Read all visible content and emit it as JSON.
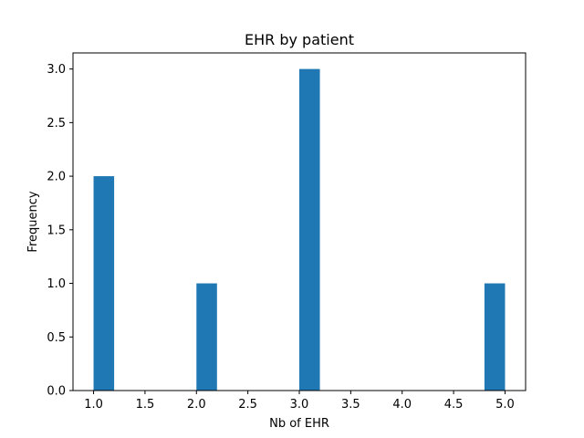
{
  "chart_data": {
    "type": "bar",
    "title": "EHR by patient",
    "xlabel": "Nb of EHR",
    "ylabel": "Frequency",
    "xlim": [
      0.8,
      5.2
    ],
    "ylim": [
      0,
      3.15
    ],
    "bar_width": 0.2,
    "bars": [
      {
        "x_start": 1.0,
        "value": 2
      },
      {
        "x_start": 2.0,
        "value": 1
      },
      {
        "x_start": 3.0,
        "value": 3
      },
      {
        "x_start": 4.8,
        "value": 1
      }
    ],
    "x_ticks": [
      "1.0",
      "1.5",
      "2.0",
      "2.5",
      "3.0",
      "3.5",
      "4.0",
      "4.5",
      "5.0"
    ],
    "y_ticks": [
      "0.0",
      "0.5",
      "1.0",
      "1.5",
      "2.0",
      "2.5",
      "3.0"
    ],
    "bar_color": "#1f77b4",
    "grid": false,
    "legend": "none"
  }
}
